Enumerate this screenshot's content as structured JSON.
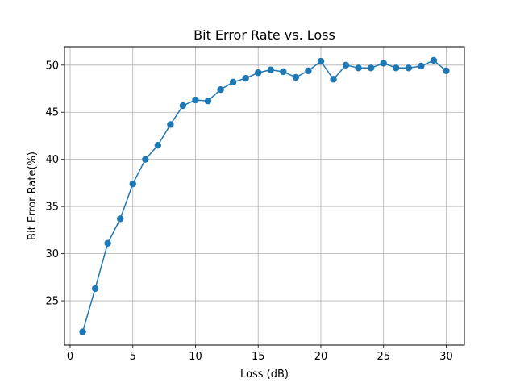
{
  "chart_data": {
    "type": "line",
    "title": "Bit Error Rate vs. Loss",
    "xlabel": "Loss (dB)",
    "ylabel": "Bit Error Rate(%)",
    "xlim": [
      -0.45,
      31.45
    ],
    "ylim": [
      20.3,
      51.95
    ],
    "xticks": [
      0,
      5,
      10,
      15,
      20,
      25,
      30
    ],
    "yticks": [
      25,
      30,
      35,
      40,
      45,
      50
    ],
    "grid": true,
    "series": [
      {
        "color": "#1f77b4",
        "marker": "circle",
        "x": [
          1,
          2,
          3,
          4,
          5,
          6,
          7,
          8,
          9,
          10,
          11,
          12,
          13,
          14,
          15,
          16,
          17,
          18,
          19,
          20,
          21,
          22,
          23,
          24,
          25,
          26,
          27,
          28,
          29,
          30
        ],
        "y": [
          21.7,
          26.3,
          31.1,
          33.7,
          37.4,
          40.0,
          41.5,
          43.7,
          45.7,
          46.3,
          46.2,
          47.4,
          48.2,
          48.6,
          49.2,
          49.5,
          49.3,
          48.7,
          49.4,
          50.4,
          48.5,
          50.0,
          49.7,
          49.7,
          50.2,
          49.7,
          49.7,
          49.9,
          50.5,
          49.4
        ]
      }
    ]
  }
}
